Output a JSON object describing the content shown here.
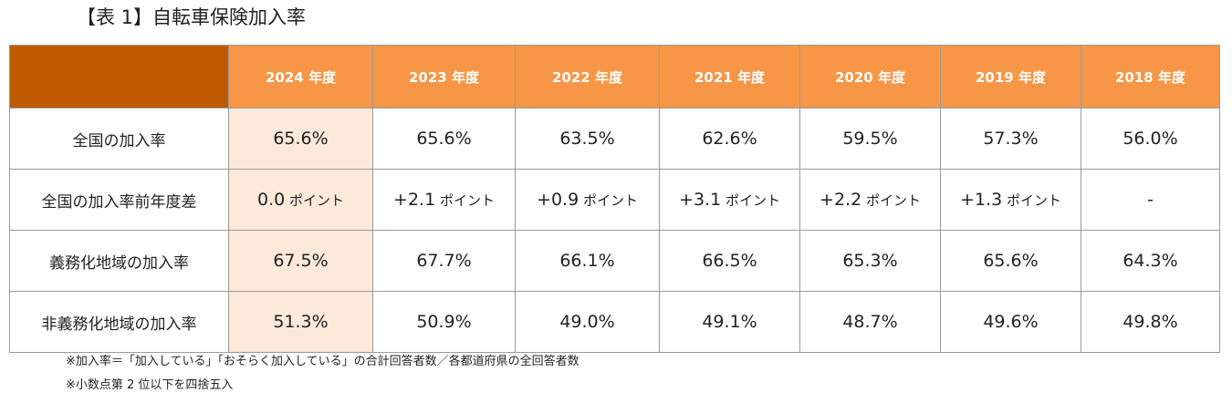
{
  "title": "【表 1】自転車保険加入率",
  "table": {
    "corner": "",
    "columns": [
      "2024 年度",
      "2023 年度",
      "2022 年度",
      "2021 年度",
      "2020 年度",
      "2019 年度",
      "2018 年度"
    ],
    "rows": [
      {
        "label": "全国の加入率",
        "cells": [
          {
            "value": "65.6%",
            "unit": ""
          },
          {
            "value": "65.6%",
            "unit": ""
          },
          {
            "value": "63.5%",
            "unit": ""
          },
          {
            "value": "62.6%",
            "unit": ""
          },
          {
            "value": "59.5%",
            "unit": ""
          },
          {
            "value": "57.3%",
            "unit": ""
          },
          {
            "value": "56.0%",
            "unit": ""
          }
        ]
      },
      {
        "label": "全国の加入率前年度差",
        "cells": [
          {
            "value": "0.0",
            "unit": " ポイント"
          },
          {
            "value": "+2.1",
            "unit": " ポイント"
          },
          {
            "value": "+0.9",
            "unit": " ポイント"
          },
          {
            "value": "+3.1",
            "unit": " ポイント"
          },
          {
            "value": "+2.2",
            "unit": " ポイント"
          },
          {
            "value": "+1.3",
            "unit": " ポイント"
          },
          {
            "value": "-",
            "unit": ""
          }
        ]
      },
      {
        "label": "義務化地域の加入率",
        "cells": [
          {
            "value": "67.5%",
            "unit": ""
          },
          {
            "value": "67.7%",
            "unit": ""
          },
          {
            "value": "66.1%",
            "unit": ""
          },
          {
            "value": "66.5%",
            "unit": ""
          },
          {
            "value": "65.3%",
            "unit": ""
          },
          {
            "value": "65.6%",
            "unit": ""
          },
          {
            "value": "64.3%",
            "unit": ""
          }
        ]
      },
      {
        "label": "非義務化地域の加入率",
        "cells": [
          {
            "value": "51.3%",
            "unit": ""
          },
          {
            "value": "50.9%",
            "unit": ""
          },
          {
            "value": "49.0%",
            "unit": ""
          },
          {
            "value": "49.1%",
            "unit": ""
          },
          {
            "value": "48.7%",
            "unit": ""
          },
          {
            "value": "49.6%",
            "unit": ""
          },
          {
            "value": "49.8%",
            "unit": ""
          }
        ]
      }
    ]
  },
  "notes": [
    "※加入率＝「加入している」「おそらく加入している」の合計回答者数／各都道府県の全回答者数",
    "※小数点第 2 位以下を四捨五入"
  ],
  "colors": {
    "header_bg": "#f79646",
    "corner_bg": "#c05a00",
    "highlight_bg": "#fde9d9",
    "border": "#9a9a9a"
  }
}
